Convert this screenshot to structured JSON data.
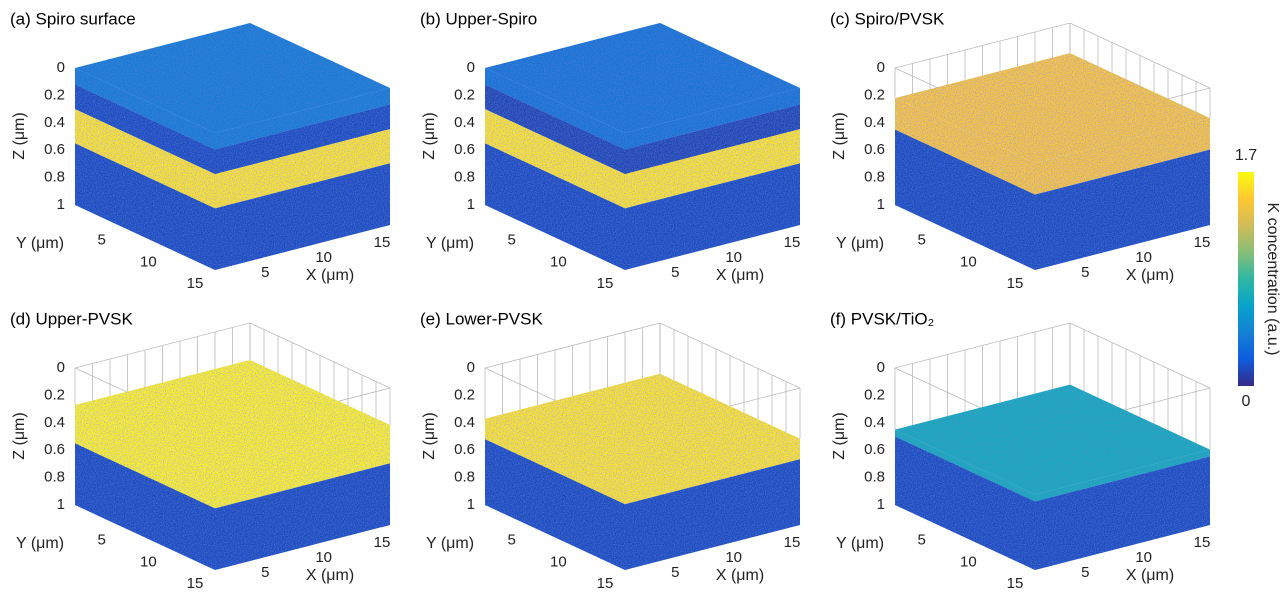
{
  "chart_data": [
    {
      "type": "volume",
      "title": "(a) Spiro surface",
      "zlabel": "Z (μm)",
      "ylabel": "Y (μm)",
      "xlabel": "X (μm)",
      "zlim": [
        0,
        1
      ],
      "zticks": [
        0,
        0.2,
        0.4,
        0.6,
        0.8,
        1
      ],
      "ylim": [
        0,
        15
      ],
      "yticks": [
        5,
        10,
        15
      ],
      "xlim": [
        0,
        15
      ],
      "xticks": [
        5,
        10,
        15
      ],
      "layers": [
        {
          "z": [
            0,
            0.12
          ],
          "value": 0.4
        },
        {
          "z": [
            0.12,
            0.3
          ],
          "value": 0.15
        },
        {
          "z": [
            0.3,
            0.55
          ],
          "value": 1.6
        },
        {
          "z": [
            0.55,
            1
          ],
          "value": 0.15
        }
      ]
    },
    {
      "type": "volume",
      "title": "(b) Upper-Spiro",
      "zlabel": "Z (μm)",
      "ylabel": "Y (μm)",
      "xlabel": "X (μm)",
      "zlim": [
        0,
        1
      ],
      "zticks": [
        0,
        0.2,
        0.4,
        0.6,
        0.8,
        1
      ],
      "ylim": [
        0,
        15
      ],
      "yticks": [
        5,
        10,
        15
      ],
      "xlim": [
        0,
        15
      ],
      "xticks": [
        5,
        10,
        15
      ],
      "layers": [
        {
          "z": [
            0,
            0.12
          ],
          "value": 0.35
        },
        {
          "z": [
            0.12,
            0.3
          ],
          "value": 0.12
        },
        {
          "z": [
            0.3,
            0.55
          ],
          "value": 1.6
        },
        {
          "z": [
            0.55,
            1
          ],
          "value": 0.15
        }
      ]
    },
    {
      "type": "volume",
      "title": "(c) Spiro/PVSK",
      "zlabel": "Z (μm)",
      "ylabel": "Y (μm)",
      "xlabel": "X (μm)",
      "zlim": [
        0,
        1
      ],
      "zticks": [
        0,
        0.2,
        0.4,
        0.6,
        0.8,
        1
      ],
      "ylim": [
        0,
        15
      ],
      "yticks": [
        5,
        10,
        15
      ],
      "xlim": [
        0,
        15
      ],
      "xticks": [
        5,
        10,
        15
      ],
      "layers": [
        {
          "z": [
            0.22,
            0.45
          ],
          "value": 1.45
        },
        {
          "z": [
            0.45,
            1
          ],
          "value": 0.15
        }
      ]
    },
    {
      "type": "volume",
      "title": "(d) Upper-PVSK",
      "zlabel": "Z (μm)",
      "ylabel": "Y (μm)",
      "xlabel": "X (μm)",
      "zlim": [
        0,
        1
      ],
      "zticks": [
        0,
        0.2,
        0.4,
        0.6,
        0.8,
        1
      ],
      "ylim": [
        0,
        15
      ],
      "yticks": [
        5,
        10,
        15
      ],
      "xlim": [
        0,
        15
      ],
      "xticks": [
        5,
        10,
        15
      ],
      "layers": [
        {
          "z": [
            0.27,
            0.55
          ],
          "value": 1.65
        },
        {
          "z": [
            0.55,
            1
          ],
          "value": 0.15
        }
      ]
    },
    {
      "type": "volume",
      "title": "(e) Lower-PVSK",
      "zlabel": "Z (μm)",
      "ylabel": "Y (μm)",
      "xlabel": "X (μm)",
      "zlim": [
        0,
        1
      ],
      "zticks": [
        0,
        0.2,
        0.4,
        0.6,
        0.8,
        1
      ],
      "ylim": [
        0,
        15
      ],
      "yticks": [
        5,
        10,
        15
      ],
      "xlim": [
        0,
        15
      ],
      "xticks": [
        5,
        10,
        15
      ],
      "layers": [
        {
          "z": [
            0.37,
            0.52
          ],
          "value": 1.6
        },
        {
          "z": [
            0.52,
            1
          ],
          "value": 0.15
        }
      ]
    },
    {
      "type": "volume",
      "title": "(f) PVSK/TiO₂",
      "zlabel": "Z (μm)",
      "ylabel": "Y (μm)",
      "xlabel": "X (μm)",
      "zlim": [
        0,
        1
      ],
      "zticks": [
        0,
        0.2,
        0.4,
        0.6,
        0.8,
        1
      ],
      "ylim": [
        0,
        15
      ],
      "yticks": [
        5,
        10,
        15
      ],
      "xlim": [
        0,
        15
      ],
      "xticks": [
        5,
        10,
        15
      ],
      "layers": [
        {
          "z": [
            0.45,
            0.5
          ],
          "value": 0.7
        },
        {
          "z": [
            0.5,
            1
          ],
          "value": 0.15
        }
      ]
    }
  ],
  "colorbar": {
    "label": "K concentration (a.u.)",
    "clim": [
      0,
      1.7
    ],
    "ticks": [
      0,
      1.7
    ],
    "colormap": [
      "#352a87",
      "#0f5cdd",
      "#1481d6",
      "#06a4ca",
      "#2eb7a4",
      "#87bf77",
      "#d1bb59",
      "#fec832",
      "#f9fb0e"
    ]
  }
}
